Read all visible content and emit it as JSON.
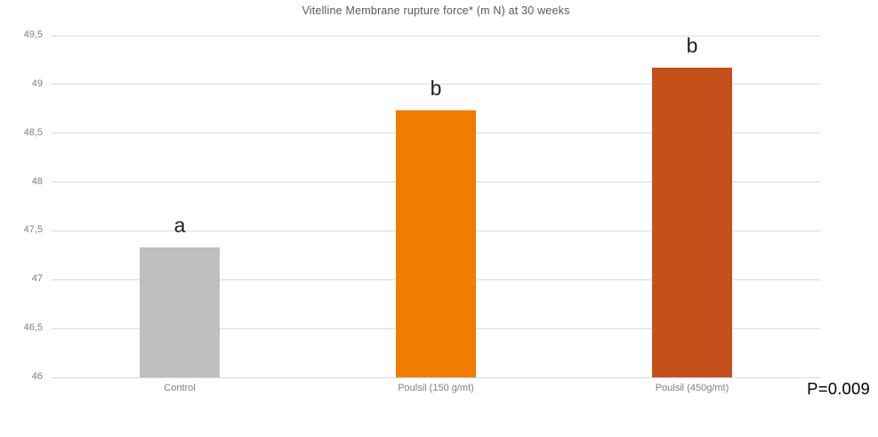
{
  "chart_data": {
    "type": "bar",
    "title": "Vitelline Membrane rupture force* (m N) at 30 weeks",
    "categories": [
      "Control",
      "Poulsil (150 g/mt)",
      "Poulsil (450g/mt)"
    ],
    "values": [
      47.33,
      48.73,
      49.17
    ],
    "bar_colors": [
      "#bfbfbf",
      "#f07c00",
      "#c4511b"
    ],
    "significance_letters": [
      "a",
      "b",
      "b"
    ],
    "xlabel": "",
    "ylabel": "",
    "ylim": [
      46,
      49.5
    ],
    "ytick_step": 0.5,
    "ytick_labels": [
      "46",
      "46,5",
      "47",
      "47,5",
      "48",
      "48,5",
      "49",
      "49,5"
    ],
    "legend": "none",
    "grid": "horizontal",
    "annotation": "P=0.009",
    "colors": {
      "gridline": "#d9d9d9",
      "title_text": "#595959",
      "axis_text": "#7f7f7f",
      "letter_text": "#1f1f1f",
      "annotation_text": "#000000",
      "background": "#ffffff"
    }
  }
}
